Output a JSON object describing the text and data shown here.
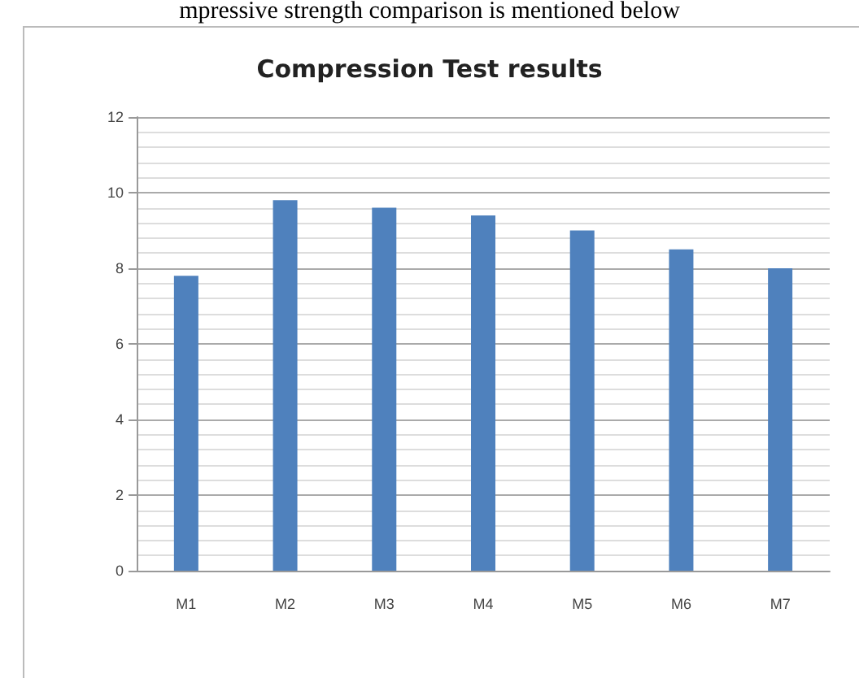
{
  "chart_data": {
    "type": "bar",
    "title": "Compression Test results",
    "annotations": [
      "mpressive strength comparison is mentioned below"
    ],
    "categories": [
      "M1",
      "M2",
      "M3",
      "M4",
      "M5",
      "M6",
      "M7"
    ],
    "values": [
      7.8,
      9.8,
      9.6,
      9.4,
      9.0,
      8.5,
      8.0
    ],
    "color": "#4f81bd",
    "ylim": [
      0,
      12
    ],
    "yticks": [
      0,
      2,
      4,
      6,
      8,
      10,
      12
    ],
    "grid": "y"
  }
}
